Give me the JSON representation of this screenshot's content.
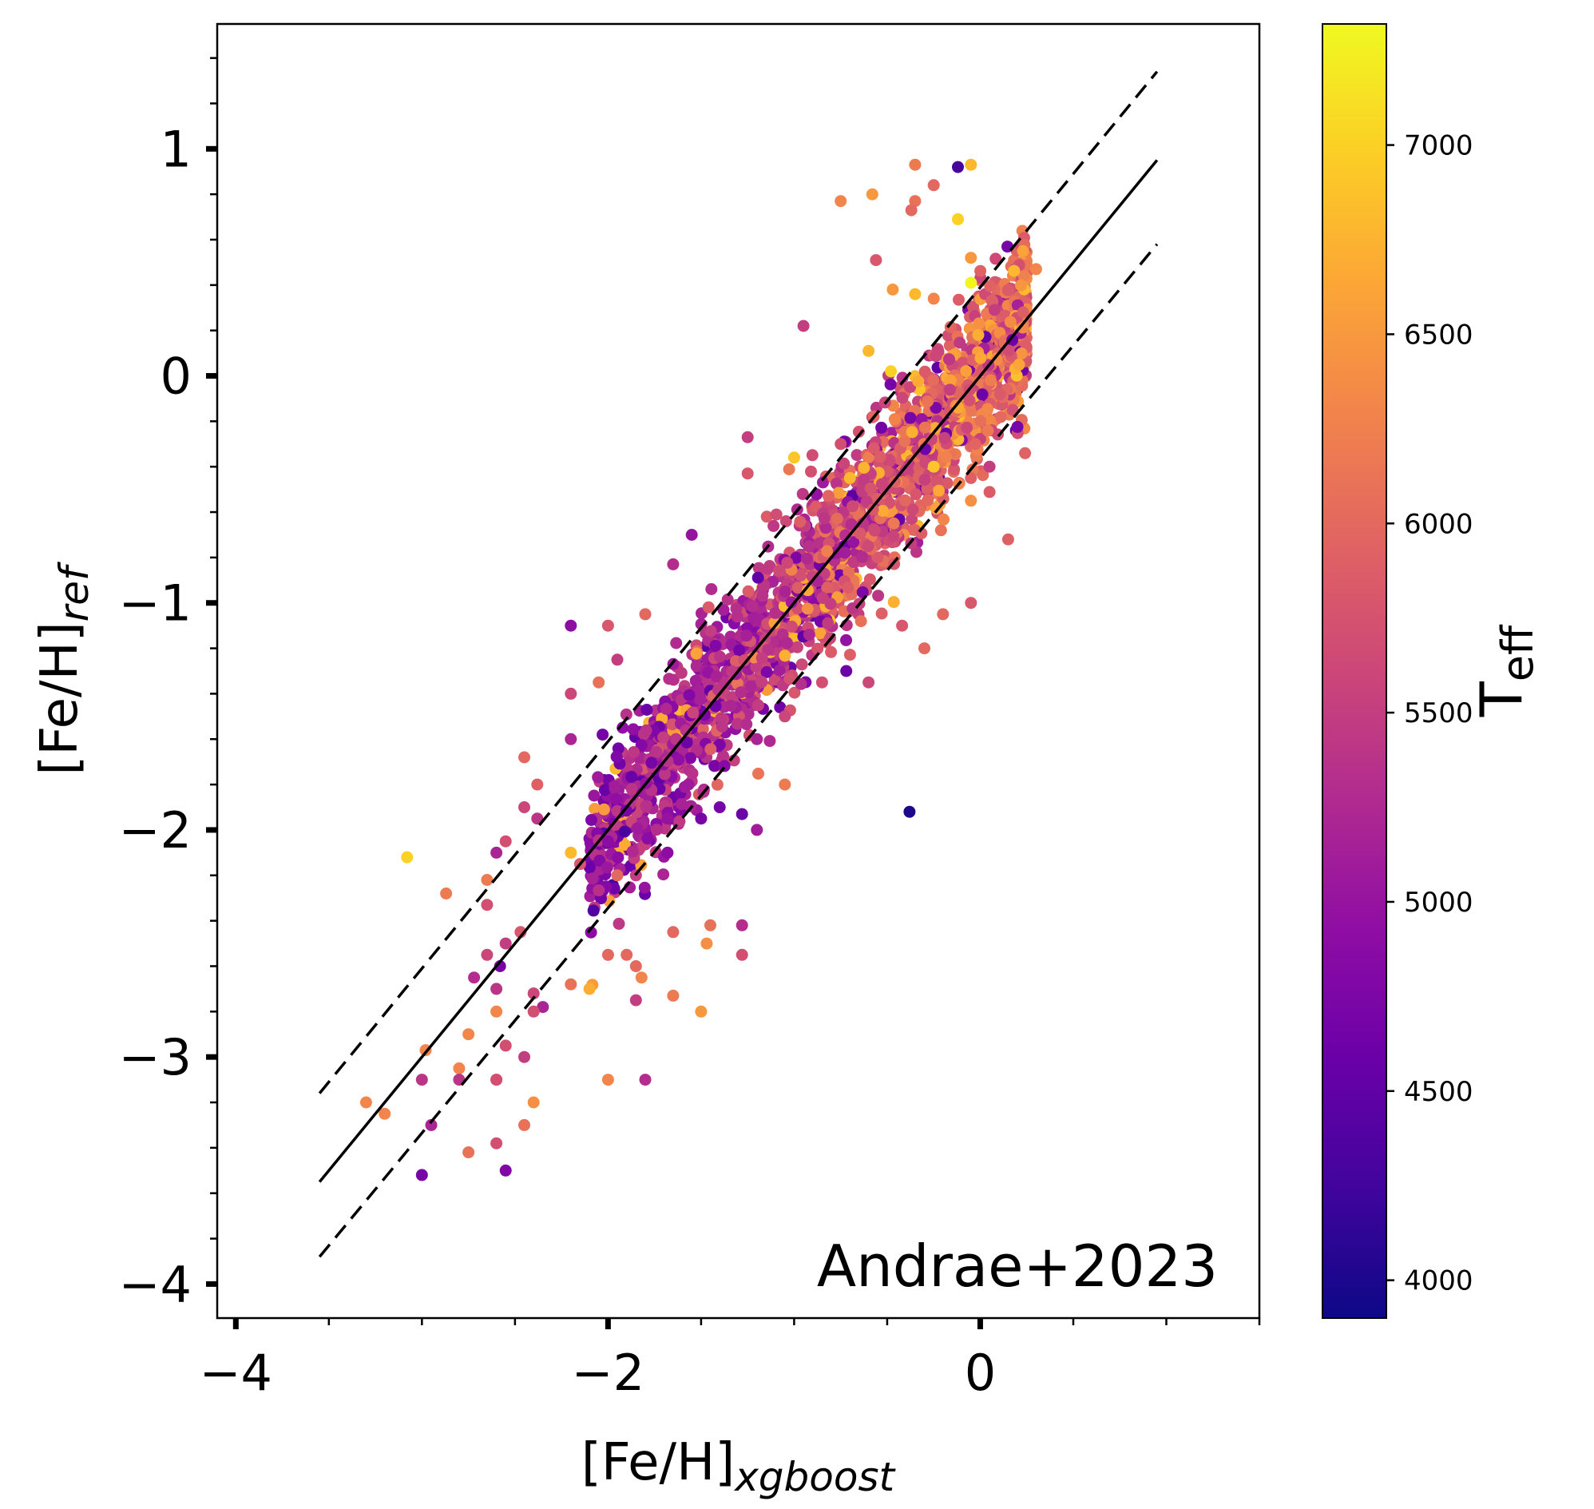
{
  "chart_data": {
    "type": "scatter",
    "xlabel": "[Fe/H]",
    "xlabel_sub": "xgboost",
    "ylabel": "[Fe/H]",
    "ylabel_sub": "ref",
    "xlim": [
      -4.1,
      1.5
    ],
    "ylim": [
      -4.15,
      1.55
    ],
    "x_major_ticks": [
      -4,
      -2,
      0
    ],
    "x_tick_labels": [
      "−4",
      "−2",
      "0"
    ],
    "y_major_ticks": [
      -4,
      -3,
      -2,
      -1,
      0,
      1
    ],
    "y_tick_labels": [
      "−4",
      "−3",
      "−2",
      "−1",
      "0",
      "1"
    ],
    "annotation": "Andrae+2023",
    "colorbar": {
      "label": "T",
      "label_sub": "eff",
      "colormap": "plasma",
      "range": [
        3900,
        7320
      ],
      "ticks": [
        4000,
        4500,
        5000,
        5500,
        6000,
        6500,
        7000
      ],
      "tick_labels": [
        "4000",
        "4500",
        "5000",
        "5500",
        "6000",
        "6500",
        "7000"
      ]
    },
    "lines": [
      {
        "kind": "one-to-one",
        "style": "solid",
        "x": [
          -3.55,
          0.95
        ],
        "y": [
          -3.55,
          0.95
        ]
      },
      {
        "kind": "offset",
        "style": "dashed",
        "x": [
          -3.55,
          0.95
        ],
        "y": [
          -3.16,
          1.34
        ]
      },
      {
        "kind": "offset",
        "style": "dashed",
        "x": [
          -3.55,
          0.95
        ],
        "y": [
          -3.88,
          0.58
        ]
      }
    ],
    "points": [
      [
        -0.35,
        0.93,
        6200
      ],
      [
        -0.12,
        0.92,
        4300
      ],
      [
        -0.05,
        0.93,
        6800
      ],
      [
        -0.25,
        0.84,
        6000
      ],
      [
        -0.58,
        0.8,
        6500
      ],
      [
        -0.75,
        0.77,
        6300
      ],
      [
        -0.35,
        0.77,
        6100
      ],
      [
        -0.12,
        0.69,
        7000
      ],
      [
        -0.37,
        0.73,
        6000
      ],
      [
        -0.56,
        0.51,
        5800
      ],
      [
        -0.05,
        0.52,
        6500
      ],
      [
        0.23,
        0.55,
        6600
      ],
      [
        0.3,
        0.47,
        6300
      ],
      [
        -0.47,
        0.38,
        6500
      ],
      [
        -0.35,
        0.36,
        6800
      ],
      [
        -0.05,
        0.41,
        7300
      ],
      [
        -0.95,
        0.22,
        5500
      ],
      [
        -0.6,
        0.11,
        6800
      ],
      [
        -0.48,
        0.02,
        7000
      ],
      [
        -0.25,
        0.34,
        6300
      ],
      [
        -0.25,
        -0.4,
        6900
      ],
      [
        -1.0,
        -0.36,
        6900
      ],
      [
        -1.25,
        -0.43,
        5800
      ],
      [
        -0.75,
        -0.3,
        5700
      ],
      [
        -0.7,
        -0.45,
        6800
      ],
      [
        -0.05,
        -0.55,
        6400
      ],
      [
        0.05,
        -0.4,
        5500
      ],
      [
        -0.05,
        -0.45,
        5900
      ],
      [
        -1.55,
        -0.7,
        5000
      ],
      [
        -1.65,
        -0.83,
        5300
      ],
      [
        -2.0,
        -1.1,
        5800
      ],
      [
        -2.2,
        -1.1,
        4900
      ],
      [
        -1.8,
        -1.05,
        6000
      ],
      [
        -1.95,
        -1.25,
        5500
      ],
      [
        -2.05,
        -1.35,
        6100
      ],
      [
        -2.2,
        -1.4,
        5600
      ],
      [
        -2.2,
        -1.6,
        5200
      ],
      [
        -2.45,
        -1.68,
        6000
      ],
      [
        -2.38,
        -1.8,
        5900
      ],
      [
        -2.38,
        -1.95,
        5400
      ],
      [
        -2.45,
        -1.9,
        5600
      ],
      [
        -2.55,
        -2.05,
        5700
      ],
      [
        -2.6,
        -2.1,
        5200
      ],
      [
        -2.65,
        -2.22,
        6200
      ],
      [
        -2.2,
        -2.1,
        6800
      ],
      [
        -1.95,
        -2.2,
        6000
      ],
      [
        -1.85,
        -2.2,
        5500
      ],
      [
        -1.68,
        -2.1,
        4900
      ],
      [
        -1.68,
        -1.95,
        5000
      ],
      [
        -1.5,
        -1.95,
        4700
      ],
      [
        -1.4,
        -1.9,
        4700
      ],
      [
        -1.28,
        -1.93,
        4600
      ],
      [
        -1.2,
        -2.0,
        5100
      ],
      [
        -2.15,
        -2.15,
        5800
      ],
      [
        -2.0,
        -2.05,
        4900
      ],
      [
        -3.08,
        -2.12,
        7000
      ],
      [
        -2.87,
        -2.28,
        6200
      ],
      [
        -2.65,
        -2.33,
        5700
      ],
      [
        -2.47,
        -2.45,
        5800
      ],
      [
        -2.55,
        -2.5,
        5500
      ],
      [
        -2.65,
        -2.55,
        5600
      ],
      [
        -2.58,
        -2.6,
        4700
      ],
      [
        -2.72,
        -2.65,
        5300
      ],
      [
        -2.6,
        -2.7,
        5400
      ],
      [
        -2.4,
        -2.72,
        5600
      ],
      [
        -2.35,
        -2.78,
        5200
      ],
      [
        -2.2,
        -2.68,
        6100
      ],
      [
        -2.1,
        -2.7,
        6700
      ],
      [
        -2.0,
        -2.55,
        6000
      ],
      [
        -1.9,
        -2.55,
        6000
      ],
      [
        -1.85,
        -2.6,
        6000
      ],
      [
        -1.65,
        -2.45,
        6000
      ],
      [
        -1.45,
        -2.42,
        6100
      ],
      [
        -1.47,
        -2.5,
        6400
      ],
      [
        -1.28,
        -2.42,
        5300
      ],
      [
        -1.28,
        -2.55,
        5700
      ],
      [
        -1.65,
        -2.73,
        6200
      ],
      [
        -1.85,
        -2.75,
        5500
      ],
      [
        -1.5,
        -2.8,
        6500
      ],
      [
        -2.4,
        -2.8,
        5700
      ],
      [
        -2.6,
        -2.8,
        6300
      ],
      [
        -2.75,
        -2.9,
        6300
      ],
      [
        -2.8,
        -3.05,
        6300
      ],
      [
        -2.98,
        -2.97,
        6300
      ],
      [
        -2.55,
        -2.95,
        5700
      ],
      [
        -2.45,
        -3.0,
        5500
      ],
      [
        -2.6,
        -3.1,
        5600
      ],
      [
        -2.6,
        -3.1,
        5700
      ],
      [
        -2.8,
        -3.1,
        5400
      ],
      [
        -3.0,
        -3.1,
        5400
      ],
      [
        -3.3,
        -3.2,
        6300
      ],
      [
        -3.2,
        -3.25,
        6300
      ],
      [
        -2.4,
        -3.2,
        6400
      ],
      [
        -2.45,
        -3.3,
        6100
      ],
      [
        -2.95,
        -3.3,
        5200
      ],
      [
        -2.6,
        -3.38,
        5700
      ],
      [
        -2.75,
        -3.42,
        6100
      ],
      [
        -2.55,
        -3.5,
        4800
      ],
      [
        -3.0,
        -3.52,
        4700
      ],
      [
        -2.0,
        -3.1,
        6300
      ],
      [
        -1.8,
        -3.1,
        5300
      ],
      [
        -1.82,
        -2.65,
        6300
      ],
      [
        -1.25,
        -0.27,
        5500
      ],
      [
        -0.38,
        -1.92,
        4000
      ],
      [
        -0.72,
        -1.3,
        4600
      ],
      [
        -0.85,
        -1.35,
        5700
      ],
      [
        -0.6,
        -1.35,
        5600
      ],
      [
        -1.05,
        -1.5,
        5600
      ],
      [
        -1.2,
        -1.6,
        5200
      ],
      [
        -1.05,
        -1.8,
        6200
      ],
      [
        -0.42,
        -1.1,
        5800
      ],
      [
        -0.3,
        -1.2,
        6000
      ],
      [
        -0.2,
        -1.05,
        6000
      ],
      [
        -0.05,
        -1.0,
        5800
      ],
      [
        0.15,
        -0.72,
        5900
      ]
    ]
  }
}
